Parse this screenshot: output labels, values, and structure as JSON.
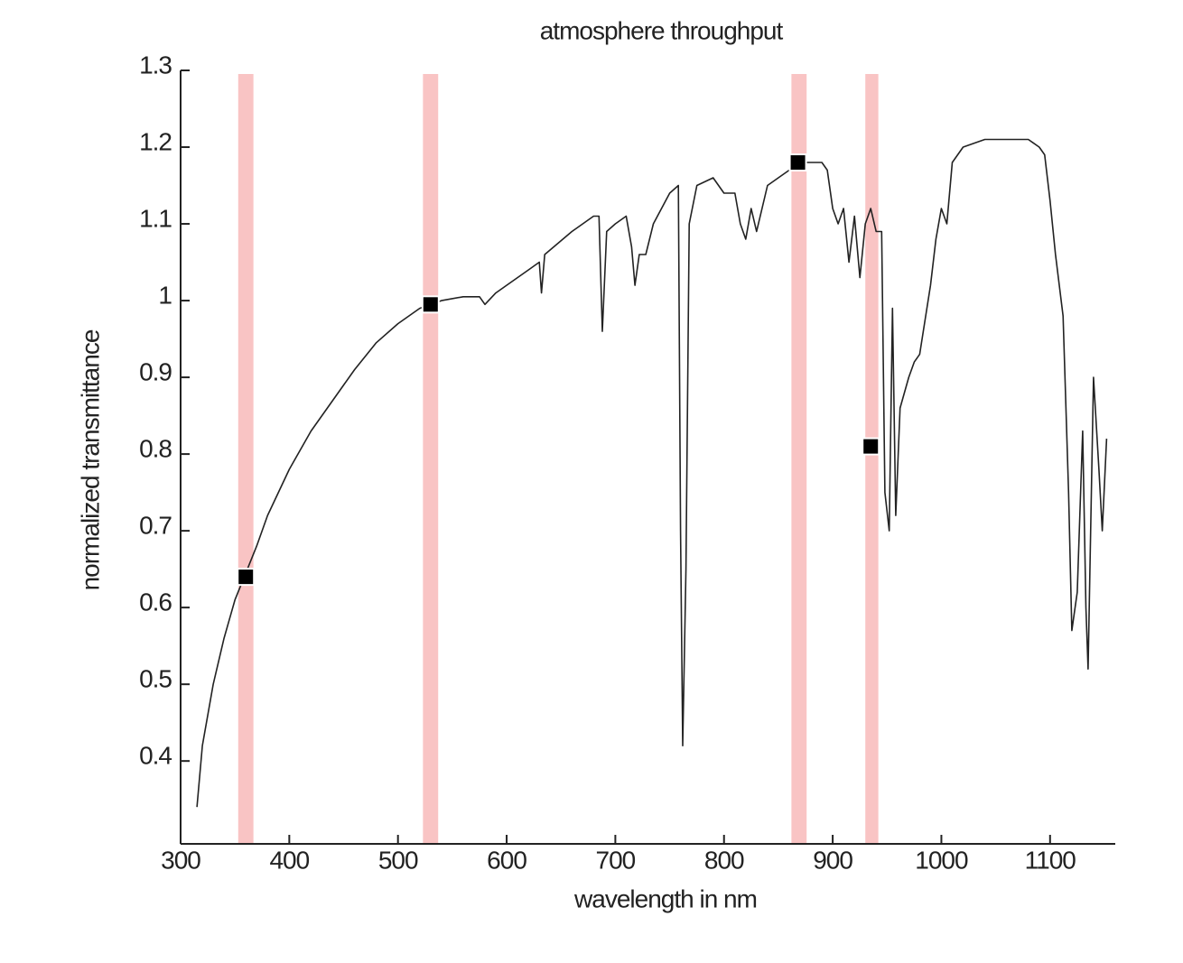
{
  "chart_data": {
    "type": "line",
    "title": "atmosphere throughput",
    "xlabel": "wavelength in nm",
    "ylabel": "normalized transmittance",
    "color": "#222222",
    "x": [
      315,
      320,
      330,
      340,
      350,
      360,
      370,
      380,
      400,
      420,
      440,
      460,
      480,
      500,
      520,
      540,
      560,
      575,
      580,
      590,
      600,
      620,
      630,
      632,
      635,
      660,
      680,
      685,
      688,
      692,
      700,
      710,
      715,
      718,
      722,
      728,
      735,
      750,
      758,
      760,
      762,
      765,
      768,
      775,
      790,
      800,
      810,
      815,
      820,
      825,
      830,
      840,
      850,
      860,
      870,
      880,
      890,
      895,
      900,
      905,
      910,
      915,
      920,
      925,
      930,
      935,
      940,
      945,
      948,
      952,
      955,
      958,
      962,
      970,
      975,
      980,
      990,
      995,
      1000,
      1005,
      1010,
      1020,
      1030,
      1040,
      1060,
      1080,
      1090,
      1095,
      1100,
      1105,
      1112,
      1117,
      1120,
      1125,
      1130,
      1133,
      1135,
      1140,
      1145,
      1148,
      1152
    ],
    "values": [
      0.34,
      0.42,
      0.5,
      0.56,
      0.61,
      0.645,
      0.68,
      0.72,
      0.78,
      0.83,
      0.87,
      0.91,
      0.945,
      0.97,
      0.99,
      1.0,
      1.005,
      1.005,
      0.995,
      1.01,
      1.02,
      1.04,
      1.05,
      1.01,
      1.06,
      1.09,
      1.11,
      1.11,
      0.96,
      1.09,
      1.1,
      1.11,
      1.07,
      1.02,
      1.06,
      1.06,
      1.1,
      1.14,
      1.15,
      0.7,
      0.42,
      0.65,
      1.1,
      1.15,
      1.16,
      1.14,
      1.14,
      1.1,
      1.08,
      1.12,
      1.09,
      1.15,
      1.16,
      1.17,
      1.18,
      1.18,
      1.18,
      1.17,
      1.12,
      1.1,
      1.12,
      1.05,
      1.11,
      1.03,
      1.1,
      1.12,
      1.09,
      1.09,
      0.75,
      0.7,
      0.99,
      0.72,
      0.86,
      0.9,
      0.92,
      0.93,
      1.02,
      1.08,
      1.12,
      1.1,
      1.18,
      1.2,
      1.205,
      1.21,
      1.21,
      1.21,
      1.2,
      1.19,
      1.13,
      1.06,
      0.98,
      0.75,
      0.57,
      0.62,
      0.83,
      0.6,
      0.52,
      0.9,
      0.78,
      0.7,
      0.82
    ],
    "bands": [
      [
        353,
        367
      ],
      [
        523,
        537
      ],
      [
        862,
        876
      ],
      [
        930,
        942
      ]
    ],
    "band_color": "#f9c4c4",
    "markers": {
      "x": [
        360,
        530,
        868,
        935
      ],
      "values": [
        0.64,
        0.995,
        1.18,
        0.81
      ],
      "color": "#000000"
    },
    "xlim": [
      300,
      1160
    ],
    "ylim": [
      0.292,
      1.3
    ],
    "xticks": [
      300,
      400,
      500,
      600,
      700,
      800,
      900,
      1000,
      1100
    ],
    "yticks": [
      0.4,
      0.5,
      0.6,
      0.7,
      0.8,
      0.9,
      1,
      1.1,
      1.2,
      1.3
    ]
  }
}
